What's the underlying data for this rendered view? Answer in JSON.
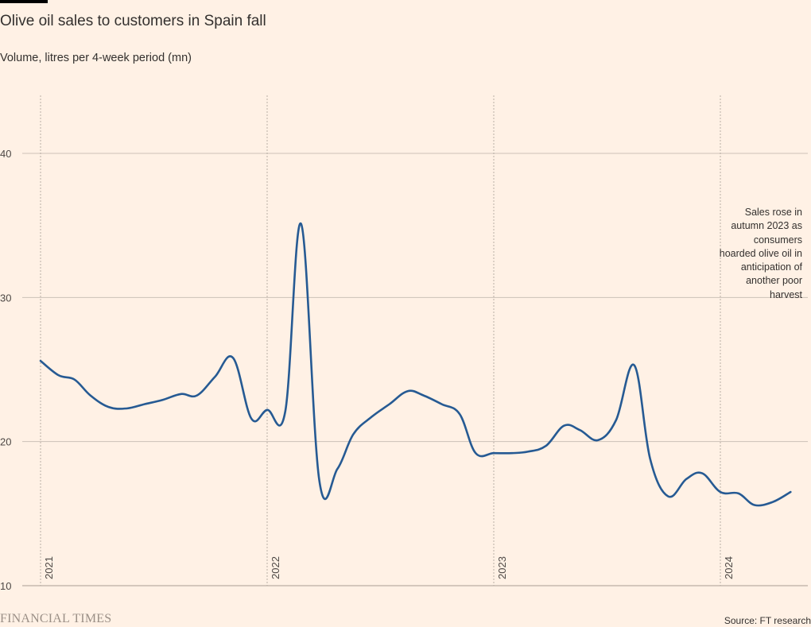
{
  "chart_data": {
    "type": "line",
    "title": "Olive oil sales to customers in Spain fall",
    "subtitle": "Volume, litres per 4-week period (mn)",
    "ylim": [
      10,
      40
    ],
    "y_ticks": [
      "10",
      "20",
      "30",
      "40"
    ],
    "y_tick_values": [
      10,
      20,
      30,
      40
    ],
    "x_range": [
      2021.0,
      2024.4
    ],
    "x_ticks": [
      "2021",
      "2022",
      "2023",
      "2024"
    ],
    "x_tick_values": [
      2021,
      2022,
      2023,
      2024
    ],
    "series": [
      {
        "name": "Volume",
        "color": "#265a93",
        "x": [
          2021.0,
          2021.08,
          2021.15,
          2021.22,
          2021.3,
          2021.38,
          2021.46,
          2021.54,
          2021.62,
          2021.69,
          2021.77,
          2021.85,
          2021.93,
          2022.0,
          2022.08,
          2022.15,
          2022.23,
          2022.31,
          2022.38,
          2022.46,
          2022.54,
          2022.62,
          2022.69,
          2022.77,
          2022.85,
          2022.92,
          2023.0,
          2023.08,
          2023.15,
          2023.23,
          2023.31,
          2023.38,
          2023.46,
          2023.54,
          2023.62,
          2023.69,
          2023.77,
          2023.85,
          2023.92,
          2024.0,
          2024.08,
          2024.15,
          2024.23,
          2024.31
        ],
        "values": [
          25.6,
          24.6,
          24.3,
          23.2,
          22.4,
          22.3,
          22.6,
          22.9,
          23.3,
          23.2,
          24.5,
          25.8,
          21.6,
          22.2,
          22.1,
          35.1,
          17.3,
          18.1,
          20.5,
          21.7,
          22.6,
          23.5,
          23.2,
          22.6,
          21.9,
          19.2,
          19.2,
          19.2,
          19.3,
          19.7,
          21.1,
          20.8,
          20.1,
          21.5,
          25.3,
          18.8,
          16.2,
          17.4,
          17.8,
          16.5,
          16.4,
          15.6,
          15.8,
          16.5
        ]
      }
    ],
    "annotation": "Sales rose in autumn 2023 as consumers hoarded olive oil in anticipation of another poor harvest"
  },
  "footer": {
    "brand": "FINANCIAL TIMES",
    "source": "Source: FT research"
  },
  "colors": {
    "background": "#fff1e5",
    "line": "#265a93",
    "grid": "#ccc1b7"
  }
}
